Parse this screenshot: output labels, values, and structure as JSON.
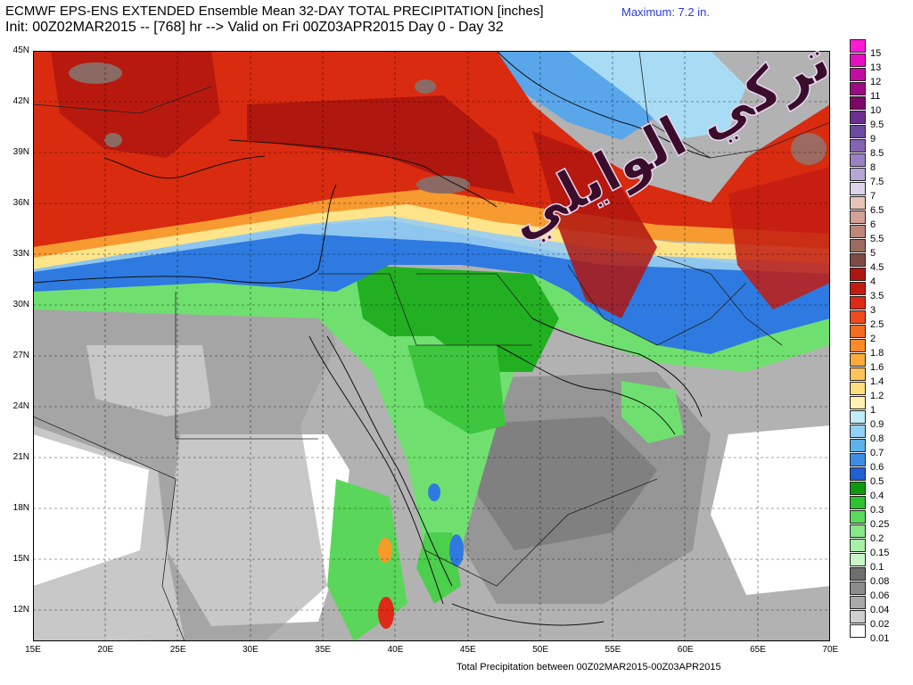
{
  "header": {
    "title_line1": "ECMWF EPS-ENS EXTENDED Ensemble Mean 32-DAY TOTAL PRECIPITATION [inches]",
    "title_line2": "Init: 00Z02MAR2015 -- [768] hr --> Valid on Fri 00Z03APR2015  Day 0 - Day 32",
    "maximum_label": "Maximum:   7.2 in."
  },
  "footer": {
    "caption": "Total Precipitation between 00Z02MAR2015-00Z03APR2015"
  },
  "axes": {
    "lat_labels": [
      "45N",
      "42N",
      "39N",
      "36N",
      "33N",
      "30N",
      "27N",
      "24N",
      "21N",
      "18N",
      "15N",
      "12N"
    ],
    "lon_labels": [
      "15E",
      "20E",
      "25E",
      "30E",
      "35E",
      "40E",
      "45E",
      "50E",
      "55E",
      "60E",
      "65E",
      "70E"
    ]
  },
  "overlay_text": "تركي الوايلي",
  "colors": {
    "grey_light": "#d9d9d9",
    "grey_mid": "#a8a8a8",
    "grey_dark": "#7d7d7d",
    "green_light": "#9bf09b",
    "green_mid": "#3ed03e",
    "green_dark": "#129a12",
    "blue_dark": "#1e5be0",
    "blue_mid": "#5a9ae6",
    "blue_light": "#aad6f2",
    "yellow": "#ffe68a",
    "orange": "#f28a1e",
    "red": "#d92b10",
    "darkred": "#a8140e",
    "brown": "#8b6a63"
  },
  "legend": [
    {
      "label": "15",
      "color": "#ff1ad6"
    },
    {
      "label": "13",
      "color": "#e60fbf"
    },
    {
      "label": "12",
      "color": "#c40ca3"
    },
    {
      "label": "11",
      "color": "#9e0a85"
    },
    {
      "label": "10",
      "color": "#7d0868"
    },
    {
      "label": "9.5",
      "color": "#6a2f8f"
    },
    {
      "label": "9",
      "color": "#6b4aa0"
    },
    {
      "label": "8.5",
      "color": "#8364b3"
    },
    {
      "label": "8",
      "color": "#9b82c4"
    },
    {
      "label": "7.5",
      "color": "#b7a6d6"
    },
    {
      "label": "7",
      "color": "#dcd3ea"
    },
    {
      "label": "6.5",
      "color": "#e7c4b7"
    },
    {
      "label": "6",
      "color": "#d3a196"
    },
    {
      "label": "5.5",
      "color": "#bd877c"
    },
    {
      "label": "5",
      "color": "#9c6a61"
    },
    {
      "label": "4.5",
      "color": "#7d4a45"
    },
    {
      "label": "4",
      "color": "#b01510"
    },
    {
      "label": "3.5",
      "color": "#c71b12"
    },
    {
      "label": "3",
      "color": "#de2a16"
    },
    {
      "label": "2.5",
      "color": "#ee4a1e"
    },
    {
      "label": "2",
      "color": "#f56b22"
    },
    {
      "label": "1.8",
      "color": "#fa8a28"
    },
    {
      "label": "1.6",
      "color": "#fcab3a"
    },
    {
      "label": "1.4",
      "color": "#ffc35a"
    },
    {
      "label": "1.2",
      "color": "#ffdf7e"
    },
    {
      "label": "1",
      "color": "#fff2b0"
    },
    {
      "label": "0.9",
      "color": "#c2ecf7"
    },
    {
      "label": "0.8",
      "color": "#8fd2f3"
    },
    {
      "label": "0.7",
      "color": "#5cb2ec"
    },
    {
      "label": "0.6",
      "color": "#3c8ee2"
    },
    {
      "label": "0.5",
      "color": "#1f60d2"
    },
    {
      "label": "0.4",
      "color": "#0e9a0e"
    },
    {
      "label": "0.3",
      "color": "#2fc22f"
    },
    {
      "label": "0.25",
      "color": "#5ad95a"
    },
    {
      "label": "0.2",
      "color": "#86e886"
    },
    {
      "label": "0.15",
      "color": "#a8f0a8"
    },
    {
      "label": "0.1",
      "color": "#c8f5c8"
    },
    {
      "label": "0.08",
      "color": "#6e6e6e"
    },
    {
      "label": "0.06",
      "color": "#8c8c8c"
    },
    {
      "label": "0.04",
      "color": "#a9a9a9"
    },
    {
      "label": "0.02",
      "color": "#cfcfcf"
    },
    {
      "label": "0.01",
      "color": "#ffffff"
    }
  ]
}
